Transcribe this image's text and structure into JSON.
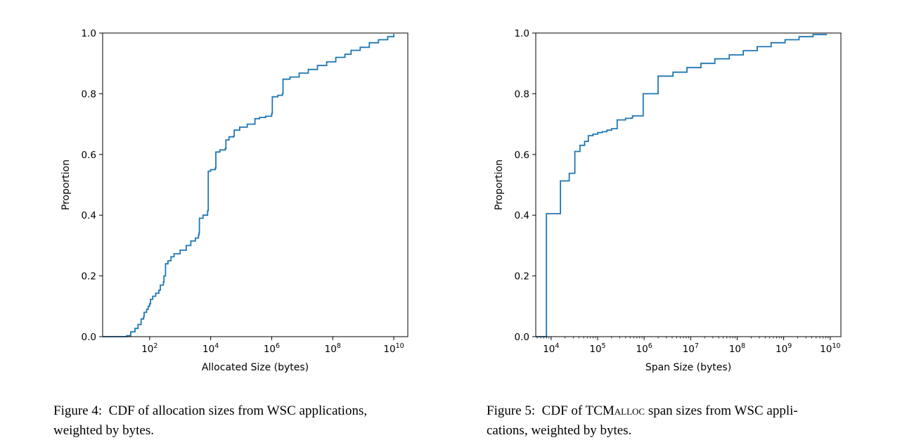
{
  "chart_data": [
    {
      "id": "fig4",
      "type": "line",
      "step": true,
      "title": "",
      "xlabel": "Allocated Size (bytes)",
      "ylabel": "Proportion",
      "xscale": "log",
      "xlim_log10": [
        0.46,
        10.46
      ],
      "ylim": [
        0.0,
        1.0
      ],
      "grid": false,
      "line_color": "#1f77b4",
      "xticks": [
        {
          "base": "10",
          "exp": "2",
          "log10": 2
        },
        {
          "base": "10",
          "exp": "4",
          "log10": 4
        },
        {
          "base": "10",
          "exp": "6",
          "log10": 6
        },
        {
          "base": "10",
          "exp": "8",
          "log10": 8
        },
        {
          "base": "10",
          "exp": "10",
          "log10": 10
        }
      ],
      "yticks": [
        "0.0",
        "0.2",
        "0.4",
        "0.6",
        "0.8",
        "1.0"
      ],
      "series": [
        {
          "name": "CDF",
          "points_log10x": [
            [
              0.46,
              0.0
            ],
            [
              1.1,
              0.0
            ],
            [
              1.25,
              0.003
            ],
            [
              1.35,
              0.003
            ],
            [
              1.38,
              0.016
            ],
            [
              1.5,
              0.016
            ],
            [
              1.52,
              0.027
            ],
            [
              1.6,
              0.027
            ],
            [
              1.62,
              0.04
            ],
            [
              1.7,
              0.04
            ],
            [
              1.72,
              0.058
            ],
            [
              1.8,
              0.065
            ],
            [
              1.82,
              0.08
            ],
            [
              1.9,
              0.09
            ],
            [
              1.95,
              0.1
            ],
            [
              2.0,
              0.108
            ],
            [
              2.03,
              0.123
            ],
            [
              2.1,
              0.133
            ],
            [
              2.2,
              0.143
            ],
            [
              2.3,
              0.153
            ],
            [
              2.35,
              0.17
            ],
            [
              2.45,
              0.18
            ],
            [
              2.47,
              0.2
            ],
            [
              2.52,
              0.24
            ],
            [
              2.6,
              0.25
            ],
            [
              2.7,
              0.263
            ],
            [
              2.8,
              0.273
            ],
            [
              3.0,
              0.285
            ],
            [
              3.2,
              0.3
            ],
            [
              3.35,
              0.315
            ],
            [
              3.5,
              0.325
            ],
            [
              3.6,
              0.335
            ],
            [
              3.62,
              0.343
            ],
            [
              3.63,
              0.39
            ],
            [
              3.75,
              0.4
            ],
            [
              3.9,
              0.415
            ],
            [
              3.92,
              0.545
            ],
            [
              4.0,
              0.55
            ],
            [
              4.15,
              0.555
            ],
            [
              4.17,
              0.608
            ],
            [
              4.3,
              0.615
            ],
            [
              4.48,
              0.62
            ],
            [
              4.5,
              0.648
            ],
            [
              4.6,
              0.658
            ],
            [
              4.75,
              0.66
            ],
            [
              4.77,
              0.68
            ],
            [
              4.95,
              0.69
            ],
            [
              5.2,
              0.7
            ],
            [
              5.43,
              0.7
            ],
            [
              5.45,
              0.718
            ],
            [
              5.6,
              0.722
            ],
            [
              5.8,
              0.726
            ],
            [
              6.0,
              0.735
            ],
            [
              6.02,
              0.79
            ],
            [
              6.2,
              0.795
            ],
            [
              6.35,
              0.8
            ],
            [
              6.37,
              0.848
            ],
            [
              6.6,
              0.855
            ],
            [
              6.9,
              0.868
            ],
            [
              7.2,
              0.88
            ],
            [
              7.5,
              0.893
            ],
            [
              7.8,
              0.905
            ],
            [
              8.1,
              0.92
            ],
            [
              8.4,
              0.93
            ],
            [
              8.6,
              0.943
            ],
            [
              8.9,
              0.953
            ],
            [
              9.2,
              0.968
            ],
            [
              9.5,
              0.978
            ],
            [
              9.8,
              0.988
            ],
            [
              10.0,
              0.997
            ]
          ]
        }
      ]
    },
    {
      "id": "fig5",
      "type": "line",
      "step": true,
      "title": "",
      "xlabel": "Span Size (bytes)",
      "ylabel": "Proportion",
      "xscale": "log",
      "xlim_log10": [
        3.67,
        10.23
      ],
      "ylim": [
        0.0,
        1.0
      ],
      "grid": false,
      "line_color": "#1f77b4",
      "xticks": [
        {
          "base": "10",
          "exp": "4",
          "log10": 4
        },
        {
          "base": "10",
          "exp": "5",
          "log10": 5
        },
        {
          "base": "10",
          "exp": "6",
          "log10": 6
        },
        {
          "base": "10",
          "exp": "7",
          "log10": 7
        },
        {
          "base": "10",
          "exp": "8",
          "log10": 8
        },
        {
          "base": "10",
          "exp": "9",
          "log10": 9
        },
        {
          "base": "10",
          "exp": "10",
          "log10": 10
        }
      ],
      "yticks": [
        "0.0",
        "0.2",
        "0.4",
        "0.6",
        "0.8",
        "1.0"
      ],
      "series": [
        {
          "name": "CDF",
          "points_log10x": [
            [
              3.67,
              0.0
            ],
            [
              3.9,
              0.0
            ],
            [
              3.9,
              0.405
            ],
            [
              4.2,
              0.405
            ],
            [
              4.2,
              0.513
            ],
            [
              4.39,
              0.513
            ],
            [
              4.39,
              0.538
            ],
            [
              4.51,
              0.538
            ],
            [
              4.51,
              0.61
            ],
            [
              4.62,
              0.61
            ],
            [
              4.62,
              0.63
            ],
            [
              4.72,
              0.632
            ],
            [
              4.72,
              0.643
            ],
            [
              4.79,
              0.643
            ],
            [
              4.8,
              0.662
            ],
            [
              4.9,
              0.667
            ],
            [
              5.0,
              0.672
            ],
            [
              5.1,
              0.675
            ],
            [
              5.2,
              0.68
            ],
            [
              5.3,
              0.685
            ],
            [
              5.42,
              0.69
            ],
            [
              5.42,
              0.714
            ],
            [
              5.6,
              0.719
            ],
            [
              5.72,
              0.72
            ],
            [
              5.75,
              0.727
            ],
            [
              5.98,
              0.733
            ],
            [
              5.98,
              0.8
            ],
            [
              6.3,
              0.8
            ],
            [
              6.3,
              0.858
            ],
            [
              6.62,
              0.858
            ],
            [
              6.62,
              0.871
            ],
            [
              6.92,
              0.871
            ],
            [
              6.92,
              0.886
            ],
            [
              7.22,
              0.886
            ],
            [
              7.22,
              0.9
            ],
            [
              7.52,
              0.9
            ],
            [
              7.52,
              0.915
            ],
            [
              7.83,
              0.915
            ],
            [
              7.83,
              0.928
            ],
            [
              8.13,
              0.928
            ],
            [
              8.13,
              0.942
            ],
            [
              8.43,
              0.942
            ],
            [
              8.43,
              0.955
            ],
            [
              8.73,
              0.955
            ],
            [
              8.73,
              0.968
            ],
            [
              9.03,
              0.968
            ],
            [
              9.03,
              0.978
            ],
            [
              9.33,
              0.978
            ],
            [
              9.33,
              0.988
            ],
            [
              9.63,
              0.988
            ],
            [
              9.63,
              0.995
            ],
            [
              9.93,
              0.995
            ]
          ]
        }
      ]
    }
  ],
  "captions": [
    {
      "label": "Figure 4:",
      "text_line1": "CDF of allocation sizes from WSC applications,",
      "text_line2": "weighted by bytes."
    },
    {
      "label": "Figure 5:",
      "prefix": "CDF of TCM",
      "smallcaps": "alloc",
      "suffix_line1": " span sizes from WSC appli-",
      "text_line2": "cations, weighted by bytes."
    }
  ]
}
